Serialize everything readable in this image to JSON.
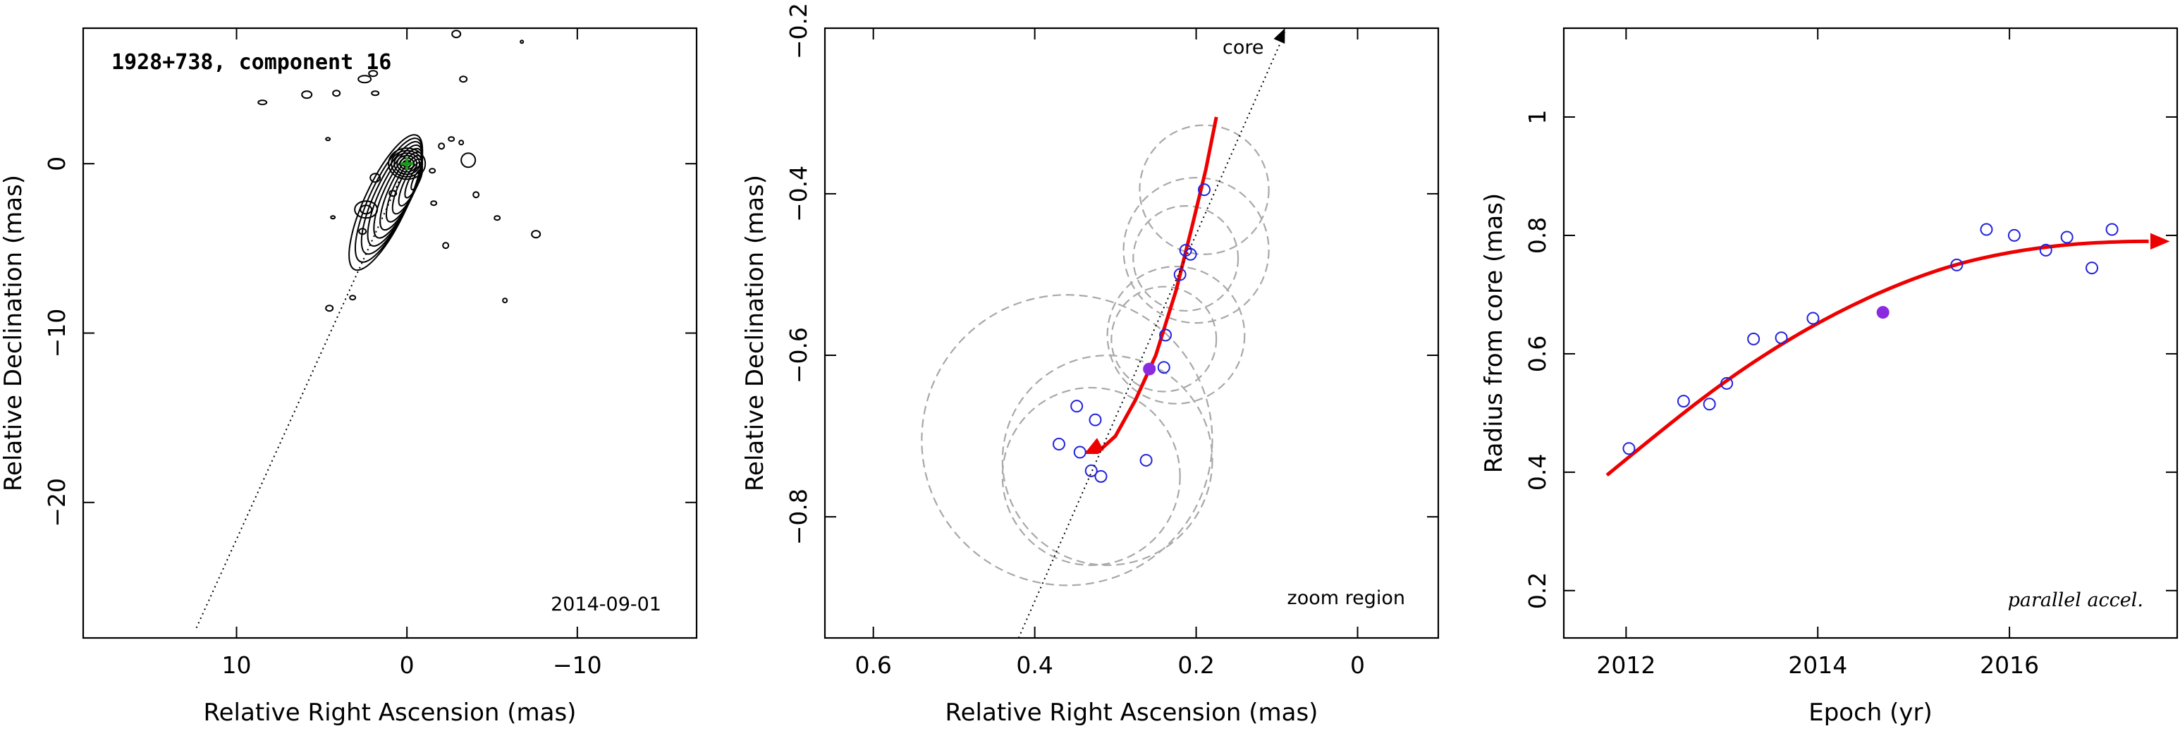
{
  "chart_data": [
    {
      "type": "scatter",
      "panel": "contour map",
      "title": "1928+738, component 16",
      "xlabel": "Relative Right Ascension (mas)",
      "ylabel": "Relative Declination (mas)",
      "xlim": [
        19,
        -17
      ],
      "ylim": [
        -28,
        8
      ],
      "xticks": [
        10,
        0,
        -10
      ],
      "yticks": [
        0,
        -10,
        -20
      ],
      "date_label": "2014-09-01",
      "jet_axis_line": {
        "x": [
          0,
          12.4
        ],
        "y": [
          0,
          -27.5
        ]
      },
      "core_marker": {
        "x": 0,
        "y": 0
      }
    },
    {
      "type": "scatter",
      "panel": "zoom",
      "xlabel": "Relative Right Ascension (mas)",
      "ylabel": "Relative Declination (mas)",
      "xlim": [
        0.66,
        -0.1
      ],
      "ylim": [
        -0.95,
        -0.195
      ],
      "xticks": [
        0.6,
        0.4,
        0.2,
        0
      ],
      "yticks": [
        -0.4,
        -0.6,
        -0.8
      ],
      "ytick_partial_label": "-0.2",
      "core_label": "core",
      "region_label": "zoom region",
      "points": [
        {
          "x": 0.37,
          "y": -0.71
        },
        {
          "x": 0.348,
          "y": -0.663
        },
        {
          "x": 0.344,
          "y": -0.72
        },
        {
          "x": 0.325,
          "y": -0.68
        },
        {
          "x": 0.33,
          "y": -0.743
        },
        {
          "x": 0.318,
          "y": -0.75
        },
        {
          "x": 0.262,
          "y": -0.73
        },
        {
          "x": 0.24,
          "y": -0.615
        },
        {
          "x": 0.238,
          "y": -0.575
        },
        {
          "x": 0.22,
          "y": -0.5
        },
        {
          "x": 0.213,
          "y": -0.47
        },
        {
          "x": 0.207,
          "y": -0.475
        },
        {
          "x": 0.19,
          "y": -0.395
        }
      ],
      "highlight_point": {
        "x": 0.258,
        "y": -0.617
      },
      "error_circles": [
        {
          "x": 0.19,
          "y": -0.395,
          "r": 0.08
        },
        {
          "x": 0.2,
          "y": -0.47,
          "r": 0.09
        },
        {
          "x": 0.213,
          "y": -0.48,
          "r": 0.065
        },
        {
          "x": 0.225,
          "y": -0.575,
          "r": 0.085
        },
        {
          "x": 0.24,
          "y": -0.58,
          "r": 0.065
        },
        {
          "x": 0.31,
          "y": -0.73,
          "r": 0.13
        },
        {
          "x": 0.33,
          "y": -0.75,
          "r": 0.11
        },
        {
          "x": 0.36,
          "y": -0.705,
          "r": 0.18
        }
      ],
      "trajectory": {
        "x": [
          0.175,
          0.188,
          0.205,
          0.225,
          0.25,
          0.275,
          0.3,
          0.322,
          0.337
        ],
        "y": [
          -0.305,
          -0.37,
          -0.44,
          -0.52,
          -0.6,
          -0.655,
          -0.7,
          -0.72,
          -0.72
        ]
      },
      "jet_axis_line": {
        "x": [
          0.09,
          0.42
        ],
        "y": [
          -0.195,
          -0.95
        ]
      }
    },
    {
      "type": "scatter",
      "panel": "radius vs epoch",
      "xlabel": "Epoch (yr)",
      "ylabel": "Radius from core (mas)",
      "xlim": [
        2011.35,
        2017.75
      ],
      "ylim": [
        0.12,
        1.15
      ],
      "xticks": [
        2012,
        2014,
        2016
      ],
      "yticks": [
        0.2,
        0.4,
        0.6,
        0.8,
        1
      ],
      "note": "parallel accel.",
      "points": [
        {
          "x": 2012.03,
          "y": 0.44
        },
        {
          "x": 2012.6,
          "y": 0.52
        },
        {
          "x": 2012.87,
          "y": 0.515
        },
        {
          "x": 2013.05,
          "y": 0.55
        },
        {
          "x": 2013.33,
          "y": 0.625
        },
        {
          "x": 2013.62,
          "y": 0.627
        },
        {
          "x": 2013.95,
          "y": 0.66
        },
        {
          "x": 2015.45,
          "y": 0.75
        },
        {
          "x": 2015.76,
          "y": 0.81
        },
        {
          "x": 2016.05,
          "y": 0.8
        },
        {
          "x": 2016.38,
          "y": 0.775
        },
        {
          "x": 2016.6,
          "y": 0.797
        },
        {
          "x": 2016.86,
          "y": 0.745
        },
        {
          "x": 2017.07,
          "y": 0.81
        }
      ],
      "highlight_point": {
        "x": 2014.68,
        "y": 0.67
      },
      "fit_curve": {
        "x": [
          2011.8,
          2012.4,
          2013.0,
          2013.6,
          2014.2,
          2014.8,
          2015.4,
          2016.0,
          2016.6,
          2017.2,
          2017.6
        ],
        "y": [
          0.395,
          0.475,
          0.55,
          0.615,
          0.67,
          0.715,
          0.75,
          0.772,
          0.785,
          0.79,
          0.79
        ]
      }
    }
  ],
  "colors": {
    "fit": "#ee0000",
    "points": "#2222dd",
    "highlight": "#8a2be2",
    "circles": "#a8a8a8",
    "core_marker": "#1a9c1a"
  }
}
